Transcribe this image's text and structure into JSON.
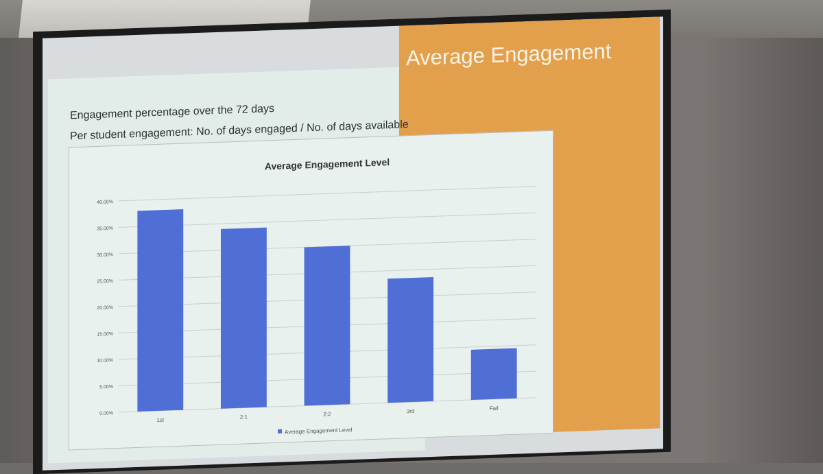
{
  "slide": {
    "title": "Average Engagement",
    "bullets": [
      "Engagement percentage over the 72 days",
      "Per student engagement: No. of days engaged / No. of days available"
    ],
    "left_panel_color": "#e2ece8",
    "accent_color": "#e3a04c"
  },
  "chart_data": {
    "type": "bar",
    "title": "Average Engagement Level",
    "categories": [
      "1st",
      "2:1",
      "2:2",
      "3rd",
      "Fail"
    ],
    "series": [
      {
        "name": "Average Engagement Level",
        "values": [
          0.38,
          0.34,
          0.3,
          0.235,
          0.095
        ],
        "color": "#4f6fd6"
      }
    ],
    "yticks": [
      "0.00%",
      "5.00%",
      "10.00%",
      "15.00%",
      "20.00%",
      "25.00%",
      "30.00%",
      "35.00%",
      "40.00%"
    ],
    "ylim": [
      0,
      0.4
    ],
    "grid": true,
    "legend_position": "bottom"
  }
}
